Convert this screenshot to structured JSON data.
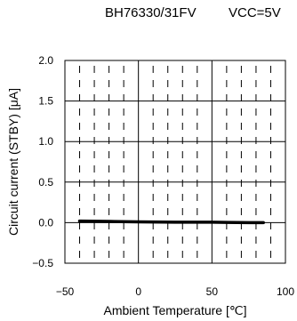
{
  "header": {
    "device": "BH76330/31FV",
    "condition": "VCC=5V"
  },
  "chart_data": {
    "type": "line",
    "title": "",
    "xlabel": "Ambient Temperature [℃]",
    "ylabel": "Circuit current (STBY) [μA]",
    "xlim": [
      -50,
      100
    ],
    "ylim": [
      -0.5,
      2.0
    ],
    "xticks": [
      -50,
      0,
      50,
      100
    ],
    "xtick_labels": [
      "−50",
      "0",
      "50",
      "100"
    ],
    "yticks": [
      -0.5,
      0.0,
      0.5,
      1.0,
      1.5,
      2.0
    ],
    "ytick_labels": [
      "−0.5",
      "0.0",
      "0.5",
      "1.0",
      "1.5",
      "2.0"
    ],
    "grid": true,
    "series": [
      {
        "x": [
          -40,
          -20,
          0,
          25,
          50,
          75,
          85
        ],
        "y": [
          0.02,
          0.015,
          0.01,
          0.005,
          0.005,
          0.0,
          0.0
        ]
      }
    ]
  }
}
